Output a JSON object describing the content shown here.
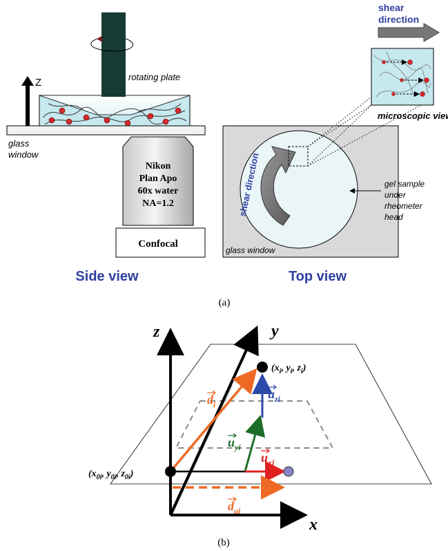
{
  "side_view": {
    "rotating_plate": "rotating plate",
    "z_label": "Z",
    "glass_window": [
      "glass",
      "window"
    ],
    "objective": [
      "Nikon",
      "Plan Apo",
      "60x water",
      "NA=1.2"
    ],
    "confocal": "Confocal",
    "caption": "Side view"
  },
  "top_view": {
    "shear_direction": [
      "shear",
      "direction"
    ],
    "microscopic_view": "microscopic view",
    "shear_direction_rotated": "shear direction",
    "gel_sample": [
      "gel sample",
      "under",
      "rheometer",
      "head"
    ],
    "glass_window": "glass window",
    "caption": "Top view"
  },
  "panel_a": "(a)",
  "coordinate_diagram": {
    "axes": {
      "z": "z",
      "y": "y",
      "x": "x"
    },
    "point_i": [
      "(x",
      "i",
      ", y",
      "i",
      ", z",
      "i",
      ")"
    ],
    "point_0i": [
      "(x",
      "0i",
      ", y",
      "0i",
      ", z",
      "0i",
      ")"
    ],
    "vectors": {
      "d_i": {
        "symbol": "d",
        "sub": "i",
        "color": "#ee6a24"
      },
      "u_zi": {
        "symbol": "u",
        "sub": "zi",
        "color": "#2c4aa8"
      },
      "u_yi": {
        "symbol": "u",
        "sub": "yi",
        "color": "#1e6e2a"
      },
      "u_xi": {
        "symbol": "u",
        "sub": "xi",
        "color": "#e02020"
      },
      "d_ai": {
        "symbol": "d",
        "sub": "ai",
        "color": "#ee6a24"
      }
    }
  },
  "panel_b": "(b)"
}
